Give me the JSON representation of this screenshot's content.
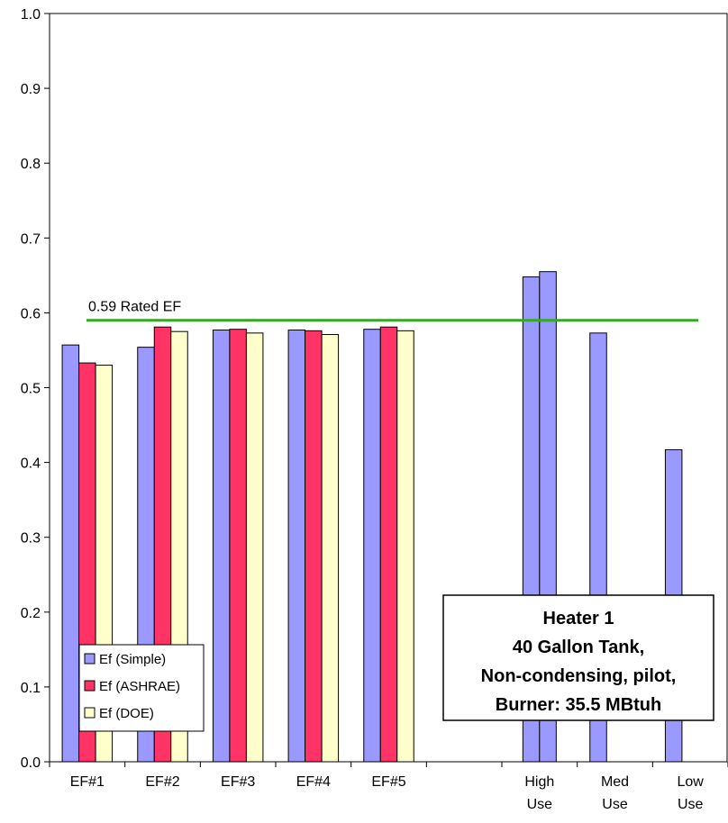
{
  "chart_data": {
    "type": "bar",
    "ylim": [
      0,
      1.0
    ],
    "ytick_step": 0.1,
    "grid": false,
    "legend_position": "bottom-left",
    "categories": [
      "EF#1",
      "EF#2",
      "EF#3",
      "EF#4",
      "EF#5",
      "",
      "High Use",
      "Med Use",
      "Low Use"
    ],
    "category_label_lines": [
      [
        "EF#1"
      ],
      [
        "EF#2"
      ],
      [
        "EF#3"
      ],
      [
        "EF#4"
      ],
      [
        "EF#5"
      ],
      [],
      [
        "High",
        "Use"
      ],
      [
        "Med",
        "Use"
      ],
      [
        "Low",
        "Use"
      ]
    ],
    "series": [
      {
        "name": "Ef (Simple)",
        "color": "#9999ff",
        "values": [
          0.557,
          0.554,
          0.577,
          0.577,
          0.578,
          null,
          null,
          0.573,
          0.417
        ]
      },
      {
        "name": "Ef (ASHRAE)",
        "color": "#ff3366",
        "values": [
          0.533,
          0.581,
          0.578,
          0.576,
          0.581,
          null,
          null,
          null,
          null
        ]
      },
      {
        "name": "Ef (DOE)",
        "color": "#ffffcc",
        "values": [
          0.53,
          0.575,
          0.573,
          0.571,
          0.576,
          null,
          null,
          null,
          null
        ]
      }
    ],
    "extra_bars": [
      {
        "category": "High Use",
        "series": "Ef (Simple)",
        "values": [
          0.648,
          0.655
        ]
      }
    ],
    "reference_line": {
      "value": 0.59,
      "label": "0.59 Rated EF",
      "color": "#33aa22"
    },
    "info_box": [
      "Heater 1",
      "40 Gallon Tank,",
      "Non-condensing, pilot,",
      "Burner: 35.5 MBtuh"
    ]
  }
}
